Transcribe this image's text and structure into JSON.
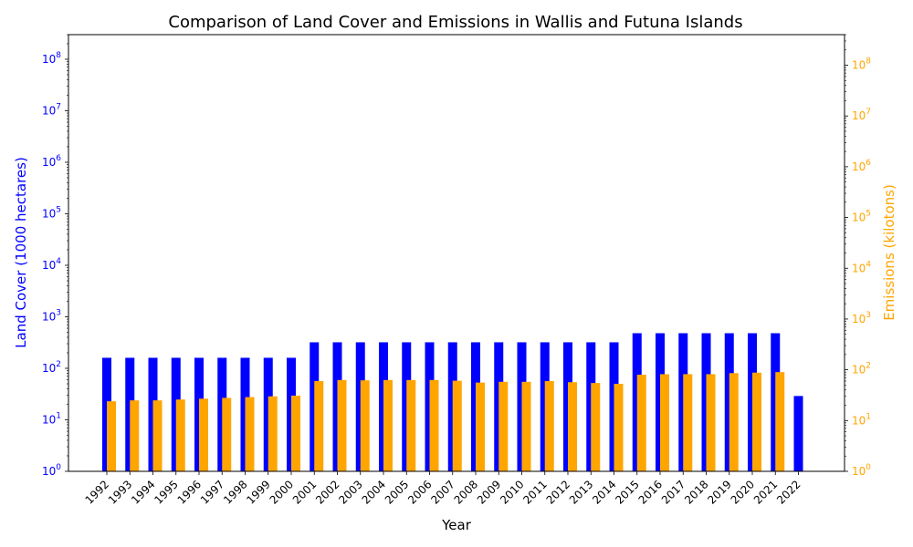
{
  "chart_data": {
    "type": "bar",
    "title": "Comparison of Land Cover and Emissions in Wallis and Futuna Islands",
    "xlabel": "Year",
    "y_left": {
      "label": "Land Cover (1000 hectares)",
      "scale": "log",
      "range": [
        1,
        300000000
      ],
      "color": "#0000ff"
    },
    "y_right": {
      "label": "Emissions (kilotons)",
      "scale": "log",
      "range": [
        1,
        400000000
      ],
      "color": "#ffa500"
    },
    "categories": [
      "1992",
      "1993",
      "1994",
      "1995",
      "1996",
      "1997",
      "1998",
      "1999",
      "2000",
      "2001",
      "2002",
      "2003",
      "2004",
      "2005",
      "2006",
      "2007",
      "2008",
      "2009",
      "2010",
      "2011",
      "2012",
      "2013",
      "2014",
      "2015",
      "2016",
      "2017",
      "2018",
      "2019",
      "2020",
      "2021",
      "2022"
    ],
    "series": [
      {
        "name": "Land Cover",
        "axis": "left",
        "color": "#0000ff",
        "values": [
          160,
          160,
          160,
          160,
          160,
          160,
          160,
          160,
          160,
          320,
          320,
          320,
          320,
          320,
          320,
          320,
          320,
          320,
          320,
          320,
          320,
          320,
          320,
          480,
          480,
          480,
          480,
          480,
          480,
          480,
          29
        ]
      },
      {
        "name": "Emissions",
        "axis": "right",
        "color": "#ffa500",
        "values": [
          24,
          25,
          25,
          26,
          27,
          28,
          29,
          30,
          31,
          60,
          63,
          62,
          63,
          63,
          63,
          61,
          56,
          58,
          58,
          60,
          57,
          55,
          53,
          80,
          82,
          82,
          82,
          86,
          88,
          90,
          null
        ]
      }
    ],
    "y_left_ticks": [
      {
        "value": 1,
        "base": "10",
        "exp": "0"
      },
      {
        "value": 10,
        "base": "10",
        "exp": "1"
      },
      {
        "value": 100,
        "base": "10",
        "exp": "2"
      },
      {
        "value": 1000,
        "base": "10",
        "exp": "3"
      },
      {
        "value": 10000,
        "base": "10",
        "exp": "4"
      },
      {
        "value": 100000,
        "base": "10",
        "exp": "5"
      },
      {
        "value": 1000000,
        "base": "10",
        "exp": "6"
      },
      {
        "value": 10000000,
        "base": "10",
        "exp": "7"
      },
      {
        "value": 100000000,
        "base": "10",
        "exp": "8"
      }
    ],
    "y_right_ticks": [
      {
        "value": 1,
        "base": "10",
        "exp": "0"
      },
      {
        "value": 10,
        "base": "10",
        "exp": "1"
      },
      {
        "value": 100,
        "base": "10",
        "exp": "2"
      },
      {
        "value": 1000,
        "base": "10",
        "exp": "3"
      },
      {
        "value": 10000,
        "base": "10",
        "exp": "4"
      },
      {
        "value": 100000,
        "base": "10",
        "exp": "5"
      },
      {
        "value": 1000000,
        "base": "10",
        "exp": "6"
      },
      {
        "value": 10000000,
        "base": "10",
        "exp": "7"
      },
      {
        "value": 100000000,
        "base": "10",
        "exp": "8"
      }
    ],
    "grid": false,
    "legend": "none"
  }
}
